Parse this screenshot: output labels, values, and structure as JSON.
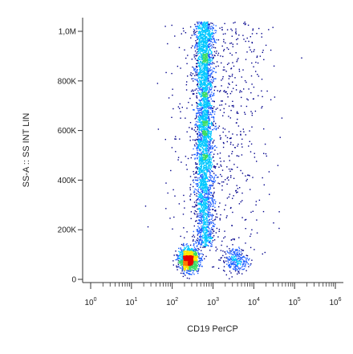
{
  "chart_data": {
    "type": "scatter",
    "title": "",
    "xlabel": "CD19 PerCP",
    "ylabel": "SS-A :: SS INT LIN",
    "x_scale": "log",
    "xlim": [
      1,
      1000000
    ],
    "ylim": [
      0,
      1048576
    ],
    "x_ticks": [
      {
        "value": 1,
        "base": "10",
        "exp": "0"
      },
      {
        "value": 10,
        "base": "10",
        "exp": "1"
      },
      {
        "value": 100,
        "base": "10",
        "exp": "2"
      },
      {
        "value": 1000,
        "base": "10",
        "exp": "3"
      },
      {
        "value": 10000,
        "base": "10",
        "exp": "4"
      },
      {
        "value": 100000,
        "base": "10",
        "exp": "5"
      },
      {
        "value": 1000000,
        "base": "10",
        "exp": "6"
      }
    ],
    "y_ticks": [
      {
        "value": 0,
        "label": "0"
      },
      {
        "value": 200000,
        "label": "200K"
      },
      {
        "value": 400000,
        "label": "400K"
      },
      {
        "value": 600000,
        "label": "600K"
      },
      {
        "value": 800000,
        "label": "800K"
      },
      {
        "value": 1000000,
        "label": "1,0M"
      }
    ],
    "density_colors": [
      "#00008b",
      "#1f5fff",
      "#00c8ff",
      "#3cdc64",
      "#ffe600",
      "#ff7800",
      "#e60000"
    ],
    "populations": [
      {
        "x_center": 250,
        "x_spread_decades": 0.12,
        "y_center": 80000,
        "y_spread": 22000,
        "count": 1200
      },
      {
        "x_center": 600,
        "x_spread_decades": 0.11,
        "y_min": 130000,
        "y_max": 1040000,
        "count": 3200
      },
      {
        "x_center": 3500,
        "x_spread_decades": 0.15,
        "y_center": 80000,
        "y_spread": 25000,
        "count": 250
      },
      {
        "x_center": 1500,
        "x_spread_decades": 0.6,
        "y_min": 50000,
        "y_max": 1040000,
        "count": 700
      }
    ],
    "grid": false,
    "legend": "none"
  }
}
